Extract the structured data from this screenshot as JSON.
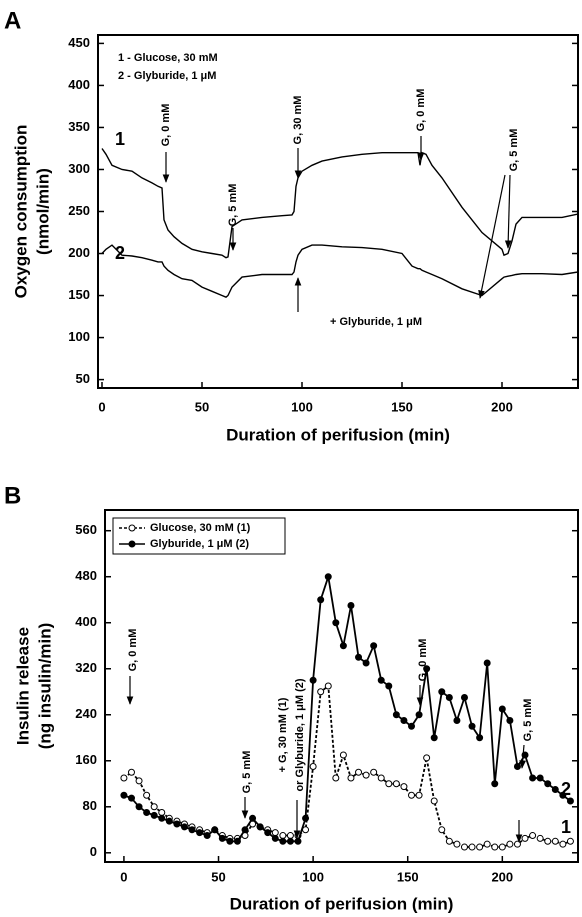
{
  "chart_data": [
    {
      "type": "line",
      "panel": "A",
      "xlabel": "Duration of perifusion (min)",
      "ylabel": [
        "Oxygen consumption",
        "(nmol/min)"
      ],
      "xlim": [
        -2,
        238
      ],
      "ylim": [
        40,
        460
      ],
      "xticks": [
        0,
        50,
        100,
        150,
        200
      ],
      "yticks": [
        50,
        100,
        150,
        200,
        250,
        300,
        350,
        400,
        450
      ],
      "x": [
        0,
        2,
        5,
        10,
        15,
        20,
        25,
        28,
        30,
        31,
        33,
        36,
        40,
        45,
        50,
        55,
        60,
        62,
        63,
        65,
        70,
        80,
        90,
        95,
        96,
        97,
        98,
        100,
        105,
        110,
        120,
        130,
        140,
        150,
        155,
        158,
        159,
        160,
        162,
        165,
        170,
        180,
        190,
        200,
        201,
        203,
        205,
        207,
        210,
        220,
        230,
        238
      ],
      "series": [
        {
          "color": "#000000",
          "values": [
            325,
            318,
            305,
            300,
            298,
            290,
            284,
            280,
            278,
            240,
            228,
            220,
            212,
            205,
            202,
            200,
            198,
            195,
            196,
            232,
            240,
            243,
            245,
            246,
            250,
            280,
            290,
            298,
            305,
            310,
            315,
            318,
            320,
            320,
            320,
            320,
            305,
            320,
            318,
            305,
            290,
            255,
            225,
            205,
            198,
            200,
            215,
            235,
            243,
            243,
            243,
            247
          ]
        },
        {
          "color": "#000000",
          "values": [
            200,
            205,
            210,
            198,
            197,
            195,
            192,
            190,
            190,
            185,
            180,
            175,
            170,
            168,
            160,
            155,
            150,
            148,
            150,
            160,
            172,
            175,
            175,
            175,
            178,
            190,
            198,
            205,
            210,
            210,
            208,
            207,
            205,
            200,
            185,
            182,
            182,
            180,
            178,
            175,
            170,
            158,
            150,
            170,
            172,
            173,
            174,
            175,
            176,
            176,
            175,
            178
          ]
        }
      ],
      "annotations": [
        "1 - Glucose, 30 mM",
        "2 - Glyburide, 1 μM",
        "G, 0 mM",
        "G, 5 mM",
        "G, 30 mM",
        "G, 0 mM",
        "G, 5 mM",
        "+ Glyburide, 1 μM",
        "1",
        "2"
      ]
    },
    {
      "type": "line",
      "panel": "B",
      "xlabel": "Duration of perifusion (min)",
      "ylabel": [
        "Insulin release",
        "(ng insulin/min)"
      ],
      "xlim": [
        -10,
        240
      ],
      "ylim": [
        -16,
        596
      ],
      "xticks": [
        0,
        50,
        100,
        150,
        200
      ],
      "yticks": [
        0,
        80,
        160,
        240,
        320,
        400,
        480,
        560
      ],
      "x": [
        0,
        4,
        8,
        12,
        16,
        20,
        24,
        28,
        32,
        36,
        40,
        44,
        48,
        52,
        56,
        60,
        64,
        68,
        72,
        76,
        80,
        84,
        88,
        92,
        96,
        100,
        104,
        108,
        112,
        116,
        120,
        124,
        128,
        132,
        136,
        140,
        144,
        148,
        152,
        156,
        160,
        164,
        168,
        172,
        176,
        180,
        184,
        188,
        192,
        196,
        200,
        204,
        208,
        212,
        216,
        220,
        224,
        228,
        232,
        236
      ],
      "series": [
        {
          "name": "Glucose, 30 mM (1)",
          "color": "#000000",
          "marker": "open",
          "dashed": true,
          "values": [
            130,
            140,
            125,
            100,
            80,
            70,
            60,
            55,
            50,
            45,
            40,
            35,
            40,
            30,
            25,
            25,
            30,
            50,
            45,
            40,
            35,
            30,
            30,
            30,
            40,
            150,
            280,
            290,
            130,
            170,
            130,
            140,
            135,
            140,
            130,
            120,
            120,
            115,
            100,
            100,
            165,
            90,
            40,
            20,
            15,
            10,
            10,
            10,
            15,
            10,
            10,
            15,
            15,
            25,
            30,
            25,
            20,
            20,
            15,
            20
          ]
        },
        {
          "name": "Glyburide, 1 μM (2)",
          "color": "#000000",
          "marker": "filled",
          "dashed": false,
          "values": [
            100,
            95,
            80,
            70,
            65,
            60,
            55,
            50,
            45,
            40,
            35,
            30,
            40,
            25,
            20,
            20,
            40,
            60,
            45,
            35,
            25,
            20,
            20,
            20,
            60,
            300,
            440,
            480,
            400,
            360,
            430,
            340,
            330,
            360,
            300,
            290,
            240,
            230,
            220,
            240,
            320,
            200,
            280,
            270,
            230,
            270,
            220,
            200,
            330,
            120,
            250,
            230,
            150,
            170,
            130,
            130,
            120,
            110,
            100,
            90
          ]
        }
      ],
      "annotations": [
        "G, 0 mM",
        "G, 5 mM",
        "+ G, 30 mM (1)",
        "or Glyburide, 1 μM (2)",
        "G, 0 mM",
        "G, 5 mM",
        "1",
        "2"
      ]
    }
  ]
}
